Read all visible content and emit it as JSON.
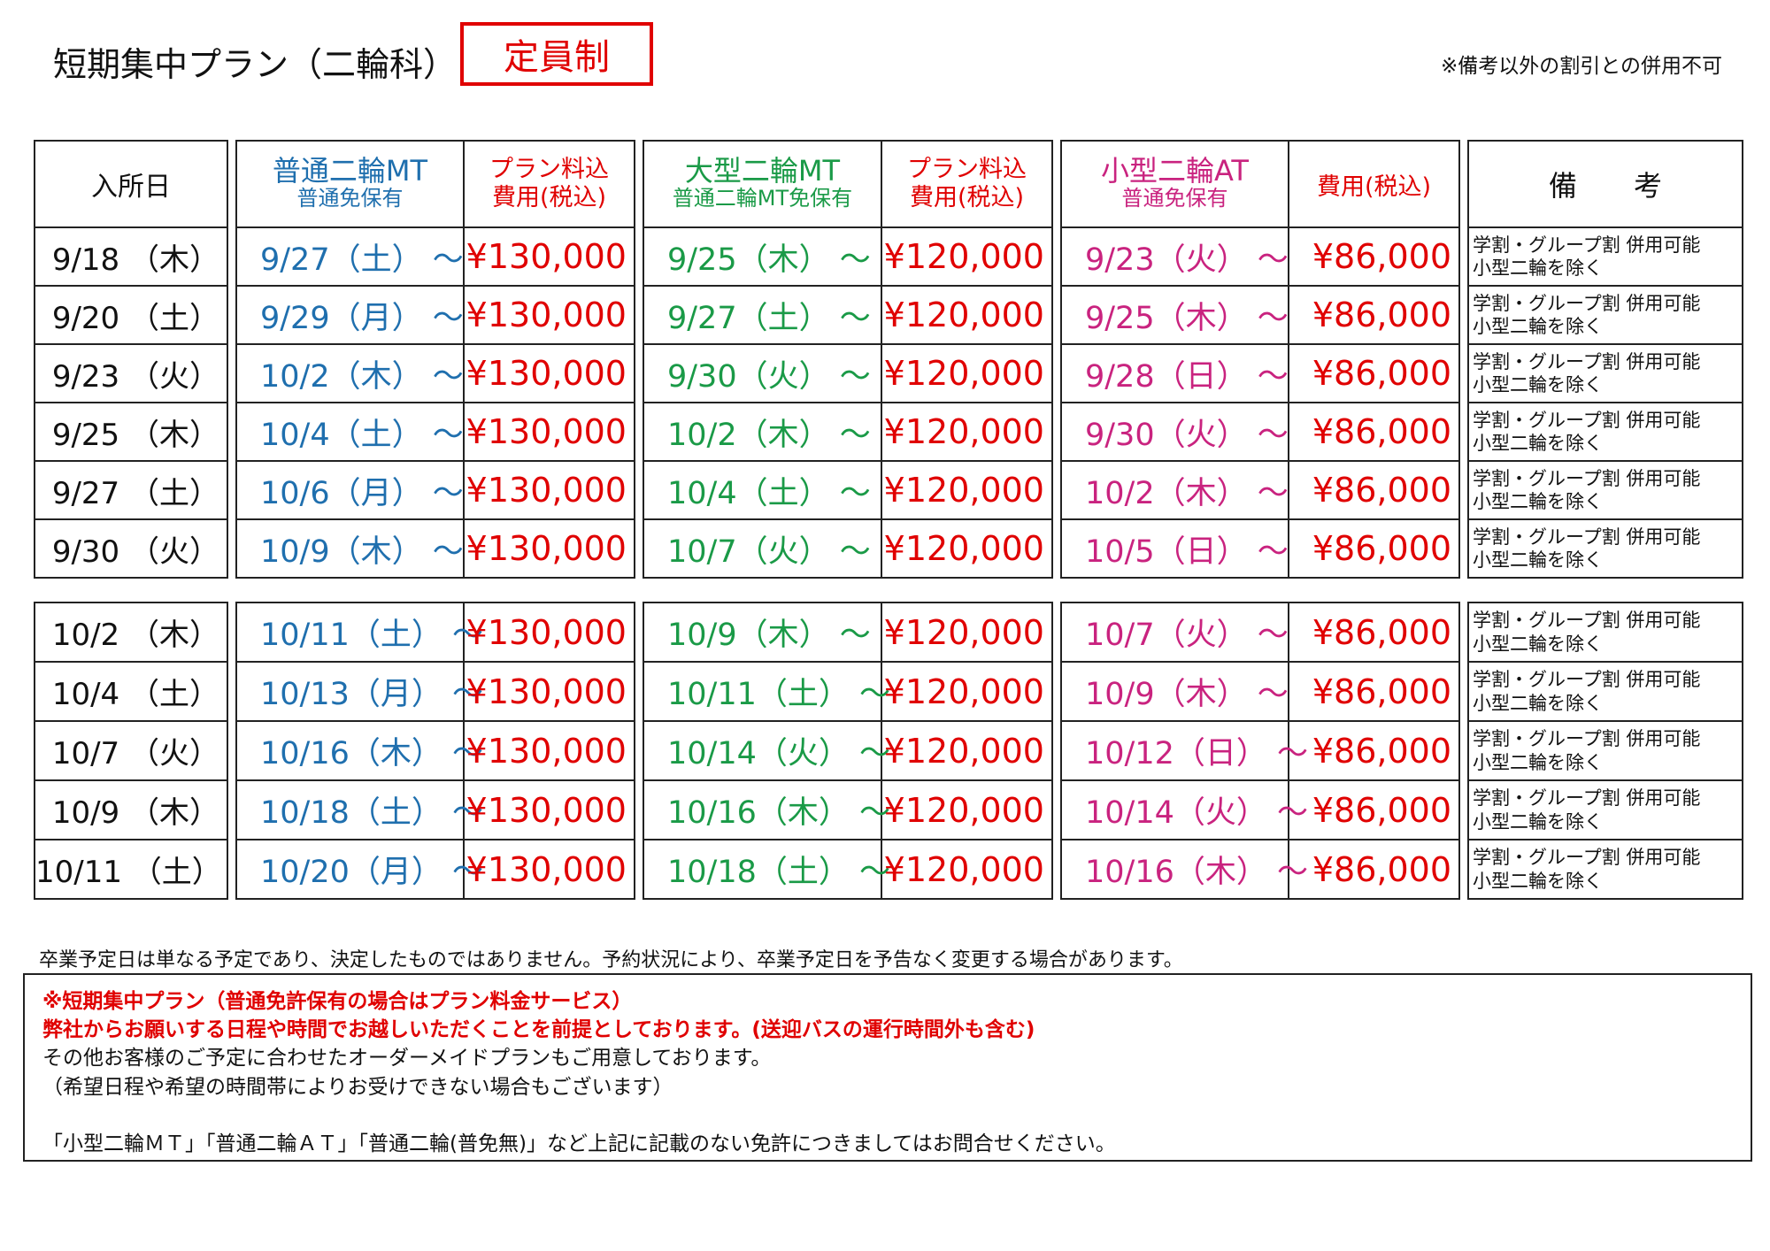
{
  "header": {
    "title": "短期集中プラン（二輪科）",
    "badge": "定員制",
    "note": "※備考以外の割引との併用不可"
  },
  "columns": {
    "entry": "入所日",
    "mt_normal": {
      "line1": "普通二輪MT",
      "line2": "普通免保有"
    },
    "mt_normal_fee": {
      "line1": "プラン料込",
      "line2": "費用(税込)"
    },
    "mt_large": {
      "line1": "大型二輪MT",
      "line2": "普通二輪MT免保有"
    },
    "mt_large_fee": {
      "line1": "プラン料込",
      "line2": "費用(税込)"
    },
    "at_small": {
      "line1": "小型二輪AT",
      "line2": "普通免保有"
    },
    "at_small_fee": "費用(税込)",
    "remarks": "備　　考"
  },
  "colors": {
    "normal": "#1f6fae",
    "large": "#1a9a47",
    "small": "#c9237f",
    "price": "#e00000"
  },
  "remark_text": {
    "line1": "学割・グループ割 併用可能",
    "line2": "小型二輪を除く"
  },
  "table1": [
    {
      "entry": "9/18 （木）",
      "mt_normal": "9/27（土） ～",
      "mt_normal_fee": "¥130,000",
      "mt_large": "9/25（木） ～",
      "mt_large_fee": "¥120,000",
      "at_small": "9/23（火） ～",
      "at_small_fee": "¥86,000"
    },
    {
      "entry": "9/20 （土）",
      "mt_normal": "9/29（月） ～",
      "mt_normal_fee": "¥130,000",
      "mt_large": "9/27（土） ～",
      "mt_large_fee": "¥120,000",
      "at_small": "9/25（木） ～",
      "at_small_fee": "¥86,000"
    },
    {
      "entry": "9/23 （火）",
      "mt_normal": "10/2（木） ～",
      "mt_normal_fee": "¥130,000",
      "mt_large": "9/30（火） ～",
      "mt_large_fee": "¥120,000",
      "at_small": "9/28（日） ～",
      "at_small_fee": "¥86,000"
    },
    {
      "entry": "9/25 （木）",
      "mt_normal": "10/4（土） ～",
      "mt_normal_fee": "¥130,000",
      "mt_large": "10/2（木） ～",
      "mt_large_fee": "¥120,000",
      "at_small": "9/30（火） ～",
      "at_small_fee": "¥86,000"
    },
    {
      "entry": "9/27 （土）",
      "mt_normal": "10/6（月） ～",
      "mt_normal_fee": "¥130,000",
      "mt_large": "10/4（土） ～",
      "mt_large_fee": "¥120,000",
      "at_small": "10/2（木） ～",
      "at_small_fee": "¥86,000"
    },
    {
      "entry": "9/30 （火）",
      "mt_normal": "10/9（木） ～",
      "mt_normal_fee": "¥130,000",
      "mt_large": "10/7（火） ～",
      "mt_large_fee": "¥120,000",
      "at_small": "10/5（日） ～",
      "at_small_fee": "¥86,000"
    }
  ],
  "table2": [
    {
      "entry": "10/2 （木）",
      "mt_normal": "10/11（土） ～",
      "mt_normal_fee": "¥130,000",
      "mt_large": "10/9（木） ～",
      "mt_large_fee": "¥120,000",
      "at_small": "10/7（火） ～",
      "at_small_fee": "¥86,000"
    },
    {
      "entry": "10/4 （土）",
      "mt_normal": "10/13（月） ～",
      "mt_normal_fee": "¥130,000",
      "mt_large": "10/11（土） ～",
      "mt_large_fee": "¥120,000",
      "at_small": "10/9（木） ～",
      "at_small_fee": "¥86,000"
    },
    {
      "entry": "10/7 （火）",
      "mt_normal": "10/16（木） ～",
      "mt_normal_fee": "¥130,000",
      "mt_large": "10/14（火） ～",
      "mt_large_fee": "¥120,000",
      "at_small": "10/12（日） ～",
      "at_small_fee": "¥86,000"
    },
    {
      "entry": "10/9 （木）",
      "mt_normal": "10/18（土） ～",
      "mt_normal_fee": "¥130,000",
      "mt_large": "10/16（木） ～",
      "mt_large_fee": "¥120,000",
      "at_small": "10/14（火） ～",
      "at_small_fee": "¥86,000"
    },
    {
      "entry": "10/11 （土）",
      "mt_normal": "10/20（月） ～",
      "mt_normal_fee": "¥130,000",
      "mt_large": "10/18（土） ～",
      "mt_large_fee": "¥120,000",
      "at_small": "10/16（木） ～",
      "at_small_fee": "¥86,000"
    }
  ],
  "footer": {
    "disclaimer": "卒業予定日は単なる予定であり、決定したものではありません。予約状況により、卒業予定日を予告なく変更する場合があります。",
    "line1": "※短期集中プラン（普通免許保有の場合はプラン料金サービス）",
    "line2": "弊社からお願いする日程や時間でお越しいただくことを前提としております。(送迎バスの運行時間外も含む)",
    "line3": "その他お客様のご予定に合わせたオーダーメイドプランもご用意しております。",
    "line4": "（希望日程や希望の時間帯によりお受けできない場合もございます）",
    "line5": "「小型二輪ＭＴ」「普通二輪ＡＴ」「普通二輪(普免無)」など上記に記載のない免許につきましてはお問合せください。"
  }
}
